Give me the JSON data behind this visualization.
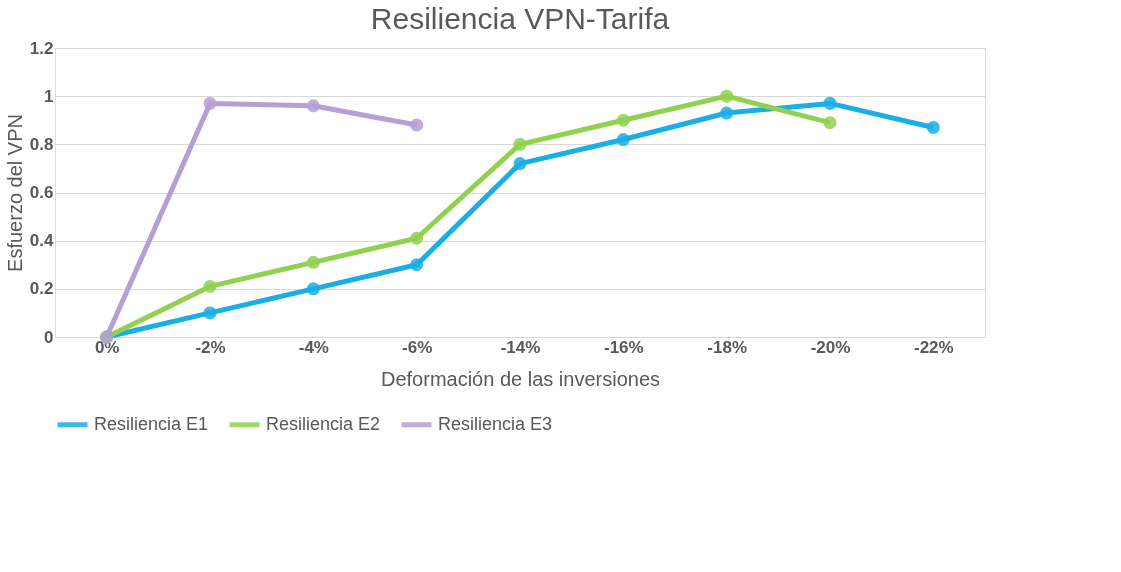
{
  "chart_data": {
    "type": "line",
    "title": "Resiliencia VPN-Tarifa",
    "xlabel": "Deformación de las inversiones",
    "ylabel": "Esfuerzo del VPN",
    "categories": [
      "0%",
      "-2%",
      "-4%",
      "-6%",
      "-14%",
      "-16%",
      "-18%",
      "-20%",
      "-22%"
    ],
    "series": [
      {
        "name": "Resiliencia E1",
        "color": "#1aaee6",
        "values": [
          0,
          0.1,
          0.2,
          0.3,
          0.72,
          0.82,
          0.93,
          0.97,
          0.87
        ]
      },
      {
        "name": "Resiliencia E2",
        "color": "#92d050",
        "values": [
          0,
          0.21,
          0.31,
          0.41,
          0.8,
          0.9,
          1.0,
          0.89,
          null
        ]
      },
      {
        "name": "Resiliencia E3",
        "color": "#b4a0d6",
        "values": [
          0,
          0.97,
          0.96,
          0.88,
          null,
          null,
          null,
          null,
          null
        ]
      }
    ],
    "ylim": [
      0,
      1.2
    ],
    "yticks": [
      0,
      0.2,
      0.4,
      0.6,
      0.8,
      1,
      1.2
    ],
    "grid": "y",
    "legend": "bottom",
    "marker": "circle",
    "line_style": "solid"
  }
}
